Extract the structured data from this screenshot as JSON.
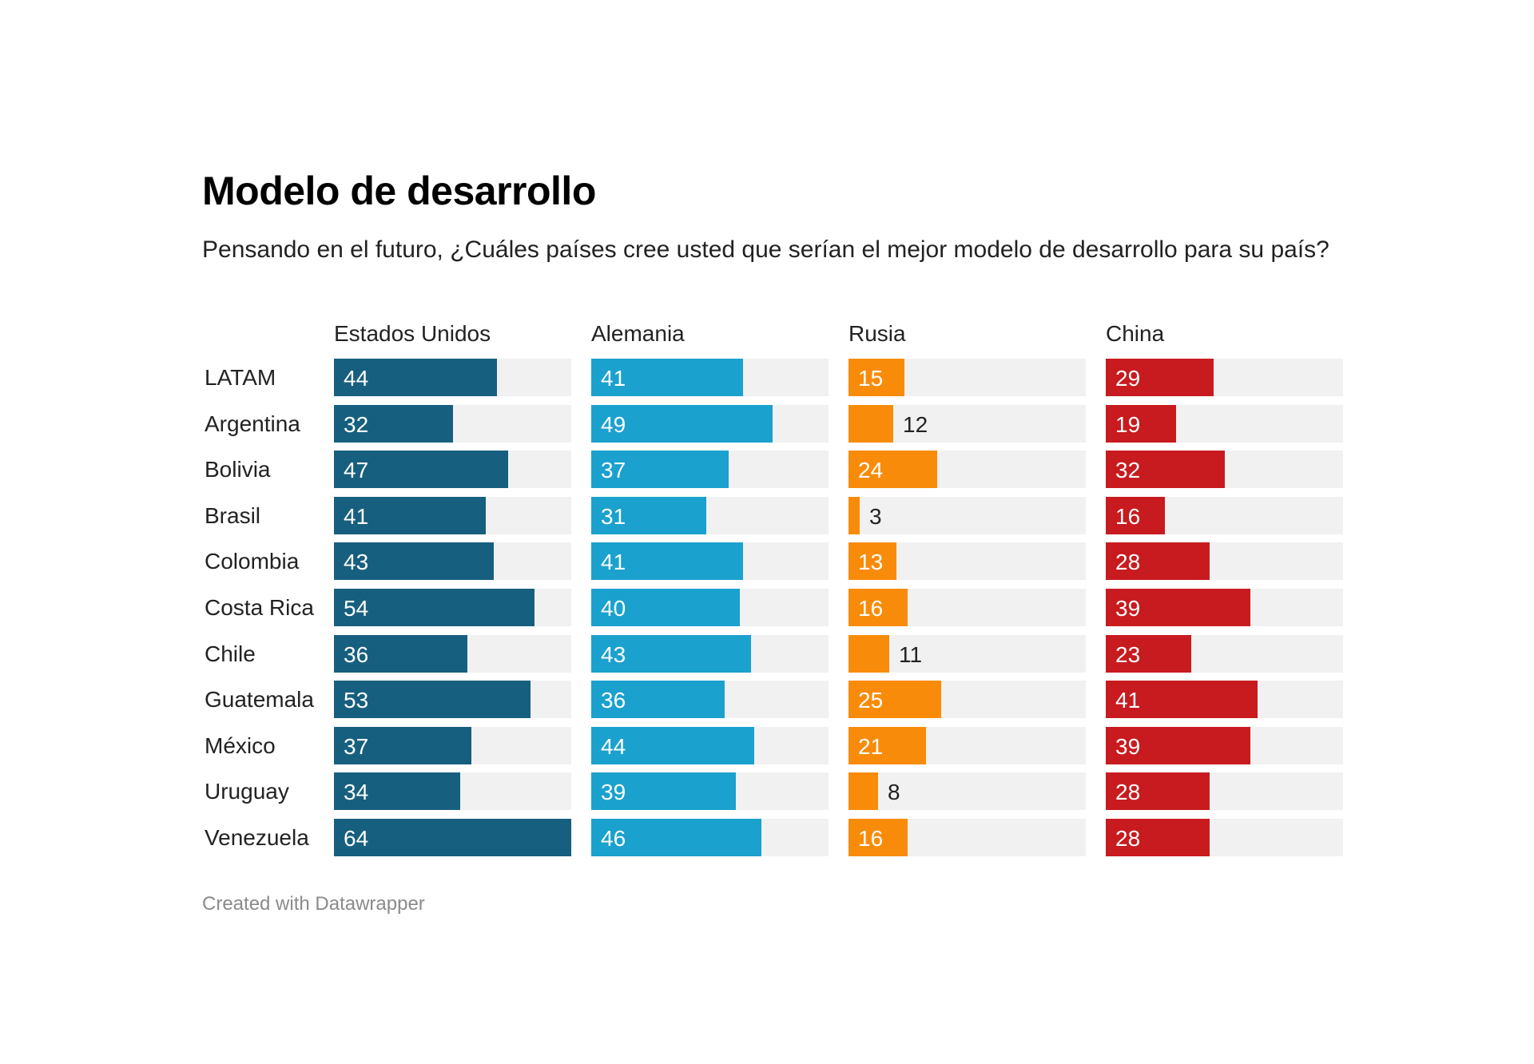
{
  "header": {
    "title": "Modelo de desarrollo",
    "subtitle": "Pensando en el futuro, ¿Cuáles países cree usted que serían el mejor modelo de desarrollo para su país?"
  },
  "footer": {
    "credit": "Created with Datawrapper"
  },
  "chart_data": {
    "type": "bar",
    "title": "Modelo de desarrollo",
    "subtitle": "Pensando en el futuro, ¿Cuáles países cree usted que serían el mejor modelo de desarrollo para su país?",
    "xlabel": "",
    "ylabel": "",
    "orientation": "horizontal",
    "layout": "small-multiples",
    "xlim": [
      0,
      64
    ],
    "grid": false,
    "legend": "none",
    "categories": [
      "LATAM",
      "Argentina",
      "Bolivia",
      "Brasil",
      "Colombia",
      "Costa Rica",
      "Chile",
      "Guatemala",
      "México",
      "Uruguay",
      "Venezuela"
    ],
    "series": [
      {
        "name": "Estados Unidos",
        "color": "#175f7e",
        "values": [
          44,
          32,
          47,
          41,
          43,
          54,
          36,
          53,
          37,
          34,
          64
        ]
      },
      {
        "name": "Alemania",
        "color": "#1ba1ce",
        "values": [
          41,
          49,
          37,
          31,
          41,
          40,
          43,
          36,
          44,
          39,
          46
        ]
      },
      {
        "name": "Rusia",
        "color": "#f88c0a",
        "values": [
          15,
          12,
          24,
          3,
          13,
          16,
          11,
          25,
          21,
          8,
          16
        ]
      },
      {
        "name": "China",
        "color": "#c81b1f",
        "values": [
          29,
          19,
          32,
          16,
          28,
          39,
          23,
          41,
          39,
          28,
          28
        ]
      }
    ],
    "background_color": "#f1f1f1",
    "source": "Created with Datawrapper"
  }
}
